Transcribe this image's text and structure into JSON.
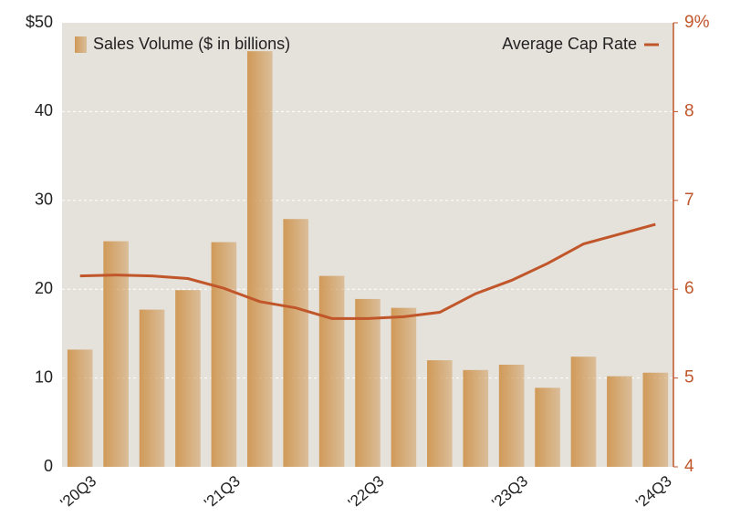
{
  "chart_data": {
    "type": "bar_line",
    "categories": [
      "'20Q3",
      null,
      null,
      null,
      "'21Q3",
      null,
      null,
      null,
      "'22Q3",
      null,
      null,
      null,
      "'23Q3",
      null,
      null,
      null,
      "'24Q3"
    ],
    "series": [
      {
        "name": "Sales Volume ($ in billions)",
        "type": "bar",
        "color": "#d09a58",
        "values": [
          13.2,
          25.4,
          17.7,
          19.9,
          25.3,
          46.8,
          27.9,
          21.5,
          18.9,
          17.9,
          12.0,
          10.9,
          11.5,
          8.9,
          12.4,
          10.2,
          10.6
        ]
      },
      {
        "name": "Average Cap Rate",
        "type": "line",
        "axis": "y2",
        "color": "#c0562a",
        "values": [
          6.15,
          6.16,
          6.15,
          6.12,
          6.01,
          5.86,
          5.79,
          5.67,
          5.67,
          5.69,
          5.74,
          5.95,
          6.1,
          6.29,
          6.51,
          6.62,
          6.73
        ]
      }
    ],
    "ylim": [
      0,
      50
    ],
    "yticks": [
      0,
      10,
      20,
      30,
      40,
      {
        "value": 50,
        "label": "$50"
      }
    ],
    "y2lim": [
      4,
      9
    ],
    "y2ticks": [
      4,
      5,
      6,
      7,
      8,
      {
        "value": 9,
        "label": "9%"
      }
    ],
    "grid": true
  }
}
